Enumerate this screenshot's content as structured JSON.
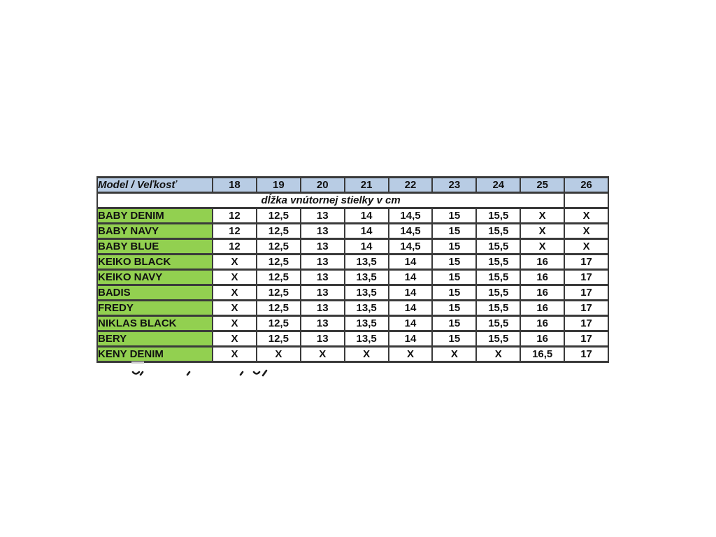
{
  "size_chart": {
    "header": {
      "model_label": "Model / Veľkosť",
      "sizes": [
        "18",
        "19",
        "20",
        "21",
        "22",
        "23",
        "24",
        "25",
        "26"
      ]
    },
    "subtitle": "dĺžka vnútornej stielky v cm",
    "rows": [
      {
        "model": "BABY DENIM",
        "values": [
          "12",
          "12,5",
          "13",
          "14",
          "14,5",
          "15",
          "15,5",
          "X",
          "X"
        ]
      },
      {
        "model": "BABY NAVY",
        "values": [
          "12",
          "12,5",
          "13",
          "14",
          "14,5",
          "15",
          "15,5",
          "X",
          "X"
        ]
      },
      {
        "model": "BABY BLUE",
        "values": [
          "12",
          "12,5",
          "13",
          "14",
          "14,5",
          "15",
          "15,5",
          "X",
          "X"
        ]
      },
      {
        "model": "KEIKO BLACK",
        "values": [
          "X",
          "12,5",
          "13",
          "13,5",
          "14",
          "15",
          "15,5",
          "16",
          "17"
        ]
      },
      {
        "model": "KEIKO NAVY",
        "values": [
          "X",
          "12,5",
          "13",
          "13,5",
          "14",
          "15",
          "15,5",
          "16",
          "17"
        ]
      },
      {
        "model": "BADIS",
        "values": [
          "X",
          "12,5",
          "13",
          "13,5",
          "14",
          "15",
          "15,5",
          "16",
          "17"
        ]
      },
      {
        "model": "FREDY",
        "values": [
          "X",
          "12,5",
          "13",
          "13,5",
          "14",
          "15",
          "15,5",
          "16",
          "17"
        ]
      },
      {
        "model": "NIKLAS BLACK",
        "values": [
          "X",
          "12,5",
          "13",
          "13,5",
          "14",
          "15",
          "15,5",
          "16",
          "17"
        ]
      },
      {
        "model": "BERY",
        "values": [
          "X",
          "12,5",
          "13",
          "13,5",
          "14",
          "15",
          "15,5",
          "16",
          "17"
        ]
      },
      {
        "model": "KENY DENIM",
        "values": [
          "X",
          "X",
          "X",
          "X",
          "X",
          "X",
          "X",
          "16,5",
          "17"
        ]
      }
    ],
    "colors": {
      "header_bg": "#b8cce4",
      "model_bg": "#92d050",
      "border": "#3a3a3a",
      "text": "#111111"
    }
  }
}
